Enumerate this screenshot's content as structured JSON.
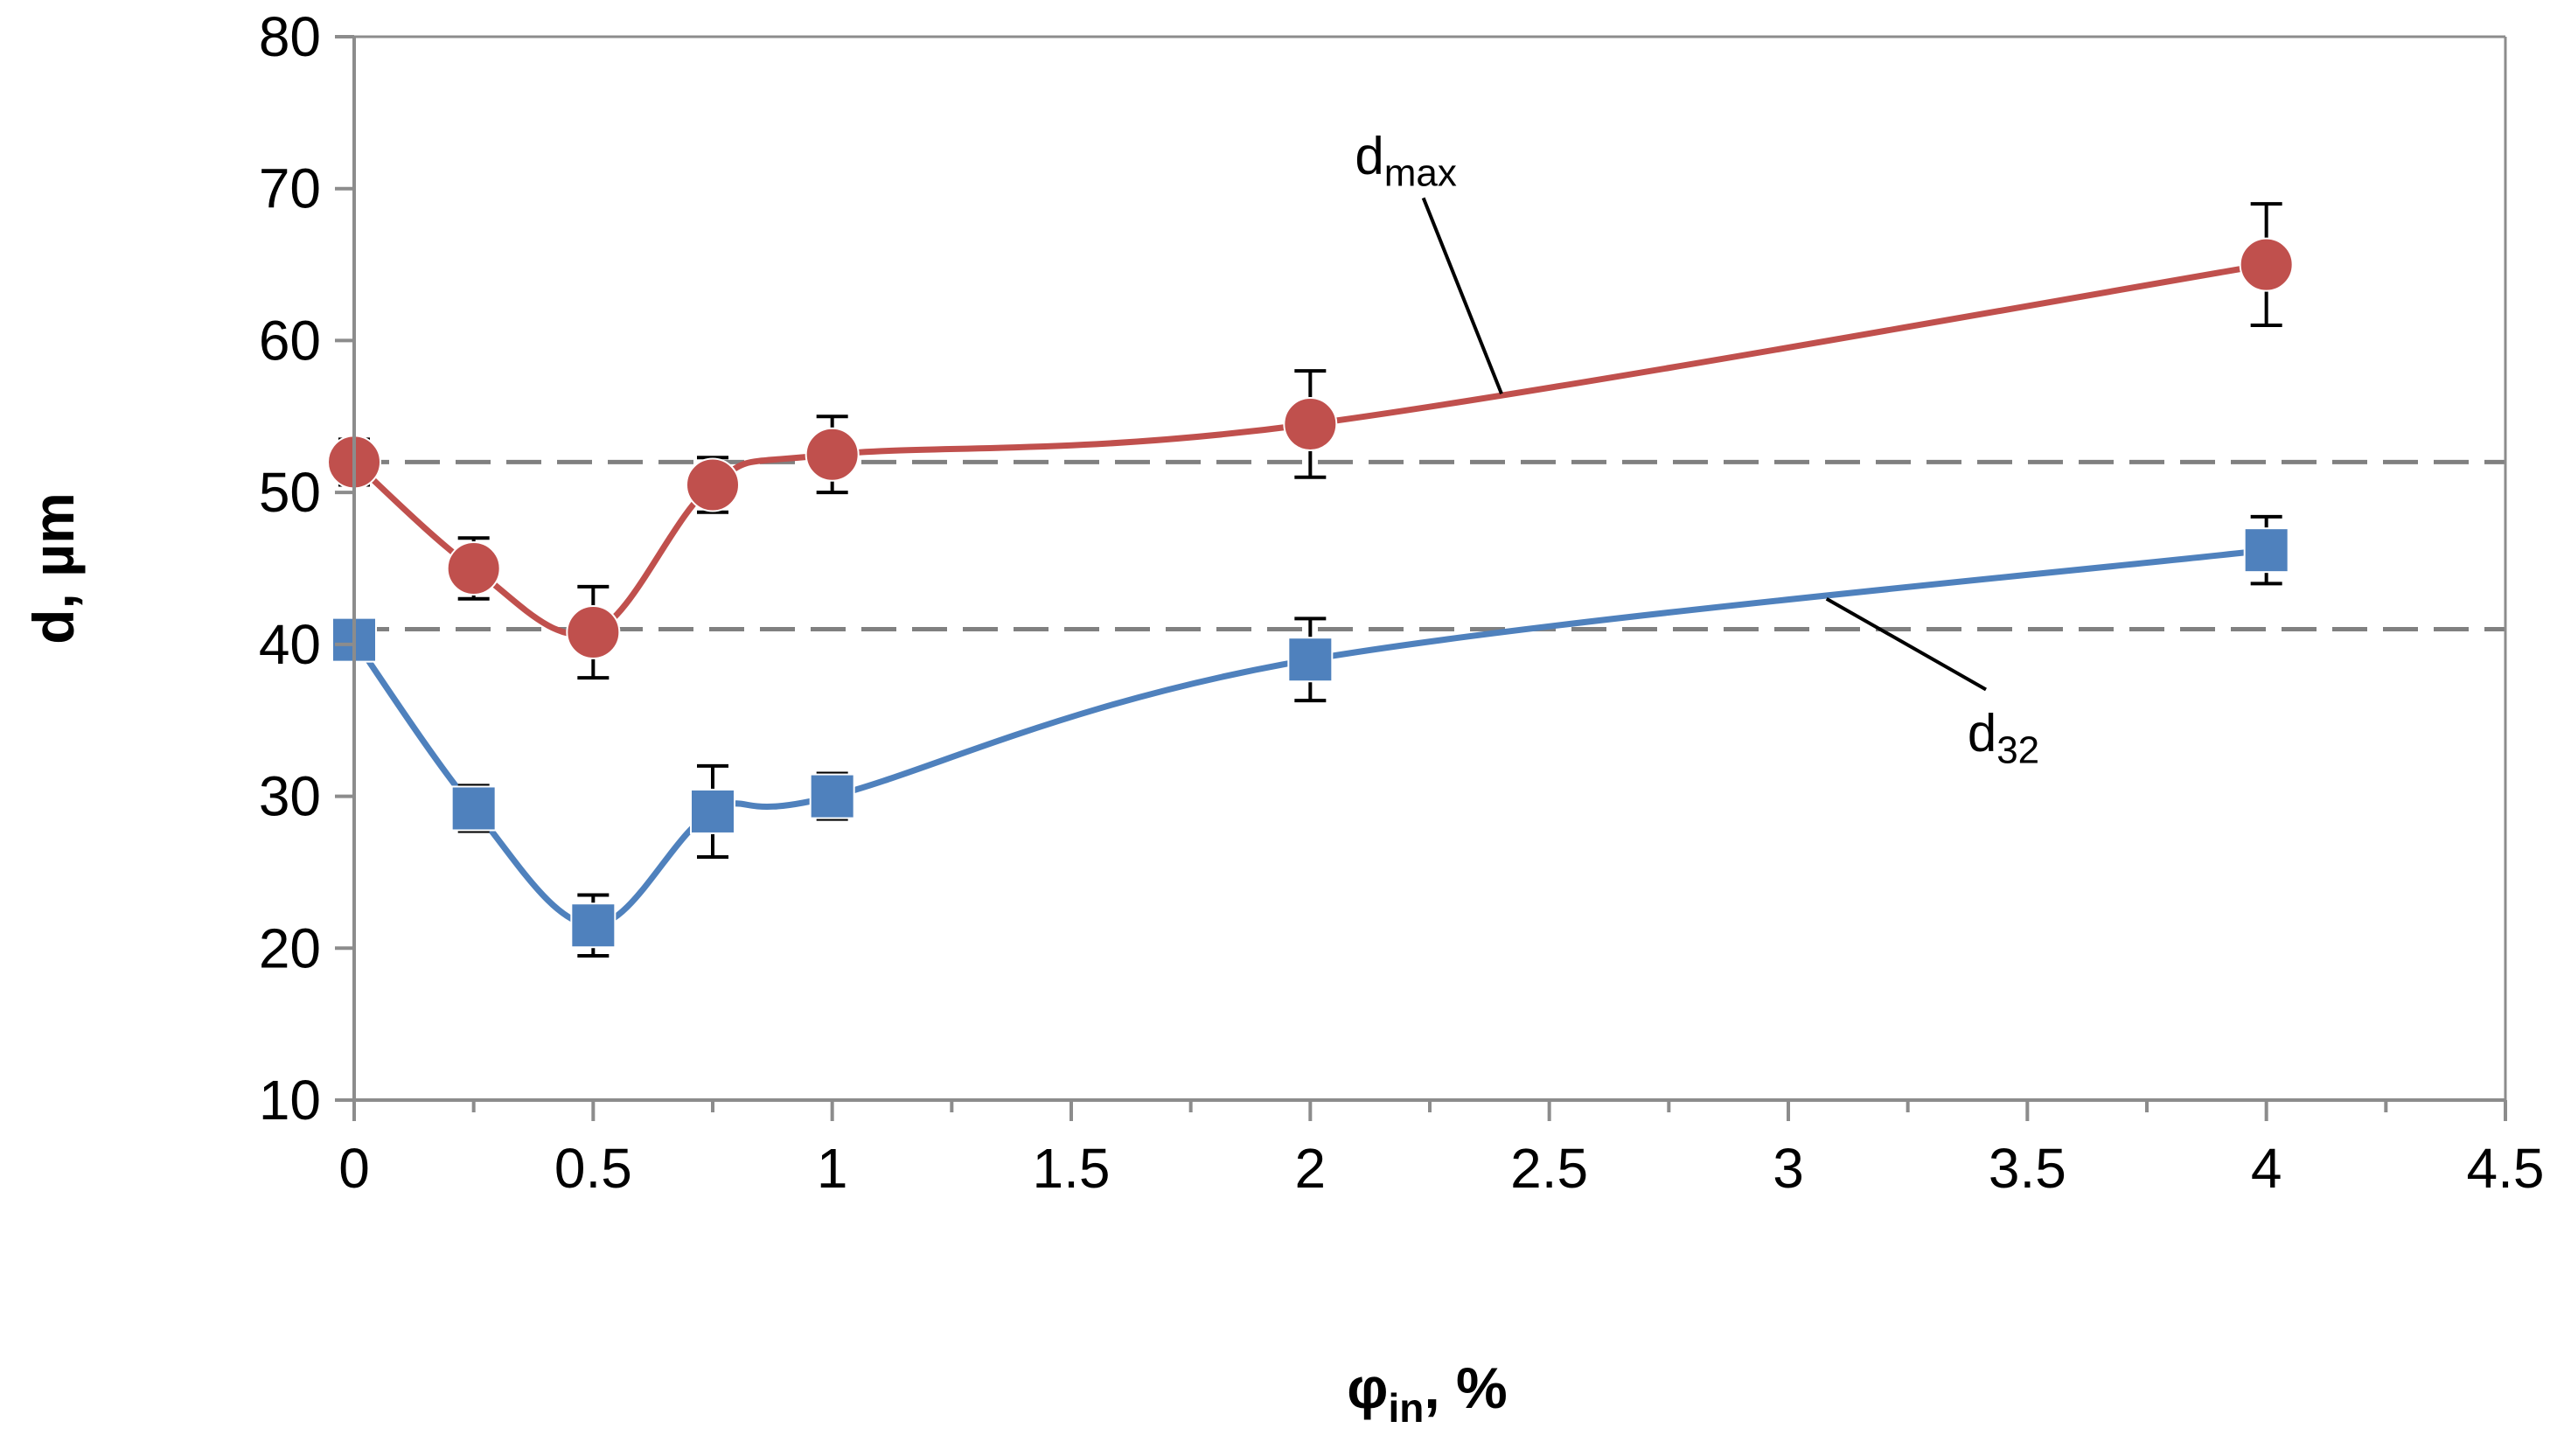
{
  "chart_data": {
    "type": "line",
    "title": "",
    "xlabel": {
      "main": "φ",
      "sub": "in",
      "suffix": ", %"
    },
    "ylabel": "d, µm",
    "xlim": [
      0,
      4.5
    ],
    "ylim": [
      10,
      80
    ],
    "x_ticks": [
      0,
      0.5,
      1,
      1.5,
      2,
      2.5,
      3,
      3.5,
      4,
      4.5
    ],
    "x_tick_labels": [
      "0",
      "0.5",
      "1",
      "1.5",
      "2",
      "2.5",
      "3",
      "3.5",
      "4",
      "4.5"
    ],
    "y_ticks": [
      10,
      20,
      30,
      40,
      50,
      60,
      70,
      80
    ],
    "y_tick_labels": [
      "10",
      "20",
      "30",
      "40",
      "50",
      "60",
      "70",
      "80"
    ],
    "grid": false,
    "legend": "none",
    "series": [
      {
        "name": "d_max",
        "label_main": "d",
        "label_sub": "max",
        "color": "#c0504d",
        "marker": "circle",
        "x": [
          0,
          0.25,
          0.5,
          0.75,
          1,
          2,
          4
        ],
        "y": [
          52,
          45,
          40.8,
          50.5,
          52.5,
          54.5,
          65
        ],
        "err": [
          1.5,
          2,
          3,
          1.8,
          2.5,
          3.5,
          4
        ]
      },
      {
        "name": "d_32",
        "label_main": "d",
        "label_sub": "32",
        "color": "#4f81bd",
        "marker": "square",
        "x": [
          0,
          0.25,
          0.5,
          0.75,
          1,
          2,
          4
        ],
        "y": [
          40.3,
          29.2,
          21.5,
          29,
          30,
          39,
          46.2
        ],
        "err": [
          0.8,
          1.5,
          2,
          3,
          1.5,
          2.7,
          2.2
        ]
      }
    ],
    "reference_lines": [
      {
        "y": 52,
        "style": "dashed",
        "color": "#808080"
      },
      {
        "y": 41,
        "style": "dashed",
        "color": "#808080"
      }
    ],
    "annotations": [
      {
        "text_main": "d",
        "text_sub": "max",
        "series": "d_max",
        "label_at": [
          2.2,
          71
        ],
        "points_to": [
          2.4,
          56.5
        ]
      },
      {
        "text_main": "d",
        "text_sub": "32",
        "series": "d_32",
        "label_at": [
          3.45,
          33
        ],
        "points_to": [
          3.08,
          43
        ]
      }
    ]
  }
}
